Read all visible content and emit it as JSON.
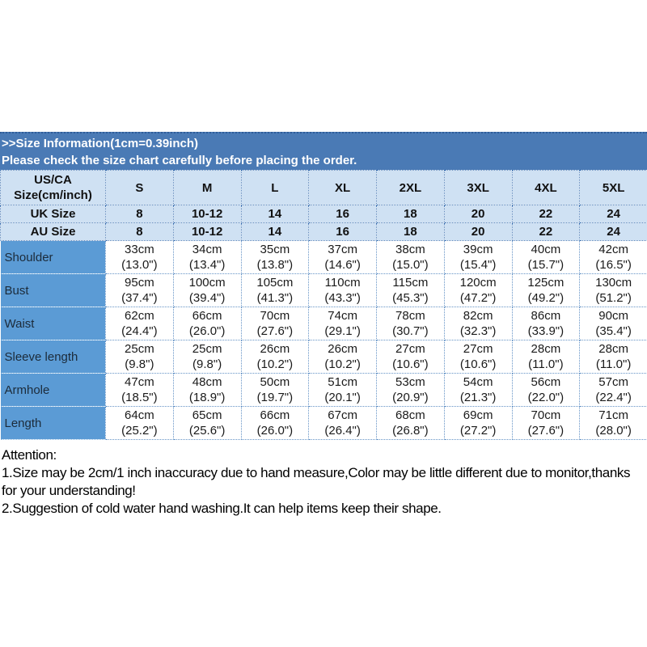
{
  "banner": {
    "line1": ">>Size Information(1cm=0.39inch)",
    "line2": "Please check the size chart carefully before placing the order."
  },
  "size_chart": {
    "corner_header_lines": [
      "US/CA",
      "Size(cm/inch)"
    ],
    "sizes": [
      "S",
      "M",
      "L",
      "XL",
      "2XL",
      "3XL",
      "4XL",
      "5XL"
    ],
    "uk_row": {
      "label": "UK Size",
      "values": [
        "8",
        "10-12",
        "14",
        "16",
        "18",
        "20",
        "22",
        "24"
      ]
    },
    "au_row": {
      "label": "AU Size",
      "values": [
        "8",
        "10-12",
        "14",
        "16",
        "18",
        "20",
        "22",
        "24"
      ]
    },
    "measurements": [
      {
        "label": "Shoulder",
        "cells": [
          [
            "33cm",
            "(13.0\")"
          ],
          [
            "34cm",
            "(13.4\")"
          ],
          [
            "35cm",
            "(13.8\")"
          ],
          [
            "37cm",
            "(14.6\")"
          ],
          [
            "38cm",
            "(15.0\")"
          ],
          [
            "39cm",
            "(15.4\")"
          ],
          [
            "40cm",
            "(15.7\")"
          ],
          [
            "42cm",
            "(16.5\")"
          ]
        ]
      },
      {
        "label": "Bust",
        "cells": [
          [
            "95cm",
            "(37.4\")"
          ],
          [
            "100cm",
            "(39.4\")"
          ],
          [
            "105cm",
            "(41.3\")"
          ],
          [
            "110cm",
            "(43.3\")"
          ],
          [
            "115cm",
            "(45.3\")"
          ],
          [
            "120cm",
            "(47.2\")"
          ],
          [
            "125cm",
            "(49.2\")"
          ],
          [
            "130cm",
            "(51.2\")"
          ]
        ]
      },
      {
        "label": "Waist",
        "cells": [
          [
            "62cm",
            "(24.4\")"
          ],
          [
            "66cm",
            "(26.0\")"
          ],
          [
            "70cm",
            "(27.6\")"
          ],
          [
            "74cm",
            "(29.1\")"
          ],
          [
            "78cm",
            "(30.7\")"
          ],
          [
            "82cm",
            "(32.3\")"
          ],
          [
            "86cm",
            "(33.9\")"
          ],
          [
            "90cm",
            "(35.4\")"
          ]
        ]
      },
      {
        "label": "Sleeve length",
        "cells": [
          [
            "25cm",
            "(9.8\")"
          ],
          [
            "25cm",
            "(9.8\")"
          ],
          [
            "26cm",
            "(10.2\")"
          ],
          [
            "26cm",
            "(10.2\")"
          ],
          [
            "27cm",
            "(10.6\")"
          ],
          [
            "27cm",
            "(10.6\")"
          ],
          [
            "28cm",
            "(11.0\")"
          ],
          [
            "28cm",
            "(11.0\")"
          ]
        ]
      },
      {
        "label": "Armhole",
        "cells": [
          [
            "47cm",
            "(18.5\")"
          ],
          [
            "48cm",
            "(18.9\")"
          ],
          [
            "50cm",
            "(19.7\")"
          ],
          [
            "51cm",
            "(20.1\")"
          ],
          [
            "53cm",
            "(20.9\")"
          ],
          [
            "54cm",
            "(21.3\")"
          ],
          [
            "56cm",
            "(22.0\")"
          ],
          [
            "57cm",
            "(22.4\")"
          ]
        ]
      },
      {
        "label": "Length",
        "cells": [
          [
            "64cm",
            "(25.2\")"
          ],
          [
            "65cm",
            "(25.6\")"
          ],
          [
            "66cm",
            "(26.0\")"
          ],
          [
            "67cm",
            "(26.4\")"
          ],
          [
            "68cm",
            "(26.8\")"
          ],
          [
            "69cm",
            "(27.2\")"
          ],
          [
            "70cm",
            "(27.6\")"
          ],
          [
            "71cm",
            "(28.0\")"
          ]
        ]
      }
    ]
  },
  "attention": {
    "title": "Attention:",
    "item1": "1.Size may be 2cm/1 inch inaccuracy due to hand measure,Color may be little different due to monitor,thanks for your understanding!",
    "item2": "2.Suggestion of cold water hand washing.It can help items keep their shape."
  },
  "colors": {
    "banner_blue": "#4a7ab5",
    "header_light_blue": "#cfe1f3",
    "label_column_blue": "#5b9bd5",
    "dotted_border_blue": "#6593c6",
    "text_dark": "#111111"
  }
}
